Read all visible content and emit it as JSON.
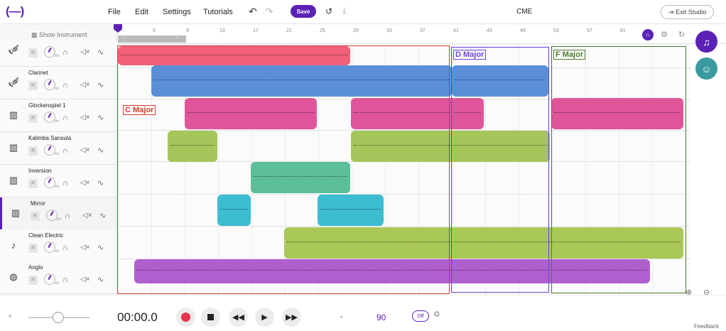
{
  "topbar": {
    "logo": "(—)",
    "menus": [
      "File",
      "Edit",
      "Settings",
      "Tutorials"
    ],
    "save_label": "Save",
    "doc_title": "CME",
    "exit_label": "Exit Studio"
  },
  "sidebar": {
    "show_instrument": "Show Instrument",
    "record_label": "R",
    "vol_label": "Vol",
    "tracks": [
      {
        "name": "",
        "icon": "trumpet-icon"
      },
      {
        "name": "Clarinet",
        "icon": "trumpet-icon"
      },
      {
        "name": "Glockenspiel 1",
        "icon": "keyboard-icon"
      },
      {
        "name": "Kalimba Sansula",
        "icon": "keyboard-icon"
      },
      {
        "name": "Inversion",
        "icon": "keyboard-icon"
      },
      {
        "name": "Mirror",
        "icon": "keyboard-icon"
      },
      {
        "name": "Clean Electric",
        "icon": "guitar-icon"
      },
      {
        "name": "Anglo",
        "icon": "drum-icon"
      }
    ]
  },
  "ruler": {
    "ticks": [
      "5",
      "9",
      "13",
      "17",
      "21",
      "25",
      "29",
      "33",
      "37",
      "41",
      "45",
      "49",
      "53",
      "57",
      "61"
    ]
  },
  "regions": {
    "c_major": "C Major",
    "d_major": "D Major",
    "f_major": "F Major"
  },
  "transport": {
    "timecode": "00:00.0",
    "key": "-",
    "tempo": "90",
    "metronome": "Off",
    "feedback": "Feedback"
  },
  "colors": {
    "accent": "#5b21b6",
    "track_red": "#f0607a",
    "track_blue": "#5a8fd8",
    "track_pink": "#e0559a",
    "track_olive": "#a6c55a",
    "track_teal": "#5cbf9a",
    "track_cyan": "#3cbdd0",
    "track_green": "#a9c857",
    "track_purple": "#b05fcf",
    "region_c": "#d23a2a",
    "region_d": "#6b3fd6",
    "region_f": "#4a7a2a"
  }
}
